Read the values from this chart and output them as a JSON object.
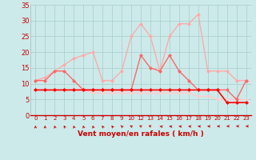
{
  "x_labels": [
    "0",
    "1",
    "2",
    "3",
    "4",
    "5",
    "6",
    "7",
    "8",
    "9",
    "10",
    "12",
    "13",
    "14",
    "15",
    "16",
    "17",
    "18",
    "19",
    "20",
    "21",
    "22",
    "23"
  ],
  "x_positions": [
    0,
    1,
    2,
    3,
    4,
    5,
    6,
    7,
    8,
    9,
    10,
    11,
    12,
    13,
    14,
    15,
    16,
    17,
    18,
    19,
    20,
    21,
    22
  ],
  "series": [
    {
      "color": "#ff0000",
      "linewidth": 1.2,
      "marker": "D",
      "markersize": 2.0,
      "values": [
        8,
        8,
        8,
        8,
        8,
        8,
        8,
        8,
        8,
        8,
        8,
        8,
        8,
        8,
        8,
        8,
        8,
        8,
        8,
        8,
        4,
        4,
        4
      ]
    },
    {
      "color": "#ff6666",
      "linewidth": 1.0,
      "marker": "D",
      "markersize": 2.0,
      "values": [
        11,
        11,
        14,
        14,
        11,
        8,
        8,
        8,
        8,
        8,
        8,
        19,
        15,
        14,
        19,
        14,
        11,
        8,
        8,
        8,
        8,
        5,
        11
      ]
    },
    {
      "color": "#ffaaaa",
      "linewidth": 1.0,
      "marker": "D",
      "markersize": 2.0,
      "values": [
        11,
        12,
        14,
        16,
        18,
        19,
        20,
        11,
        11,
        14,
        25,
        29,
        25,
        14,
        25,
        29,
        29,
        32,
        14,
        14,
        14,
        11,
        11
      ]
    },
    {
      "color": "#ffcccc",
      "linewidth": 1.0,
      "marker": "D",
      "markersize": 2.0,
      "values": [
        8,
        8,
        8,
        8,
        8,
        8,
        7,
        7,
        7,
        7,
        7,
        7,
        7,
        7,
        7,
        7,
        7,
        6,
        6,
        5,
        5,
        5,
        5
      ]
    }
  ],
  "arrow_angles": [
    90,
    90,
    95,
    100,
    95,
    95,
    95,
    100,
    105,
    110,
    120,
    130,
    140,
    150,
    155,
    160,
    165,
    170,
    175,
    180,
    185,
    190,
    185
  ],
  "xlabel": "Vent moyen/en rafales ( km/h )",
  "xlim": [
    -0.5,
    22.5
  ],
  "ylim": [
    0,
    35
  ],
  "yticks": [
    0,
    5,
    10,
    15,
    20,
    25,
    30,
    35
  ],
  "bg_color": "#cceaea",
  "grid_color": "#aacccc",
  "text_color": "#cc0000",
  "arrow_color": "#cc0000"
}
